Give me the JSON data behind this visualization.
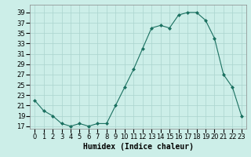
{
  "x": [
    0,
    1,
    2,
    3,
    4,
    5,
    6,
    7,
    8,
    9,
    10,
    11,
    12,
    13,
    14,
    15,
    16,
    17,
    18,
    19,
    20,
    21,
    22,
    23
  ],
  "y": [
    22,
    20,
    19,
    17.5,
    17,
    17.5,
    17,
    17.5,
    17.5,
    21,
    24.5,
    28,
    32,
    36,
    36.5,
    36,
    38.5,
    39,
    39,
    37.5,
    34,
    27,
    24.5,
    19
  ],
  "xlabel": "Humidex (Indice chaleur)",
  "line_color": "#1a7060",
  "marker": "D",
  "marker_size": 2.0,
  "bg_color": "#cceee8",
  "grid_color": "#aad4ce",
  "xlim": [
    -0.5,
    23.5
  ],
  "ylim": [
    16.5,
    40.5
  ],
  "yticks": [
    17,
    19,
    21,
    23,
    25,
    27,
    29,
    31,
    33,
    35,
    37,
    39
  ],
  "xtick_labels": [
    "0",
    "1",
    "2",
    "3",
    "4",
    "5",
    "6",
    "7",
    "8",
    "9",
    "10",
    "11",
    "12",
    "13",
    "14",
    "15",
    "16",
    "17",
    "18",
    "19",
    "20",
    "21",
    "22",
    "23"
  ],
  "xlabel_fontsize": 7,
  "tick_fontsize": 6
}
